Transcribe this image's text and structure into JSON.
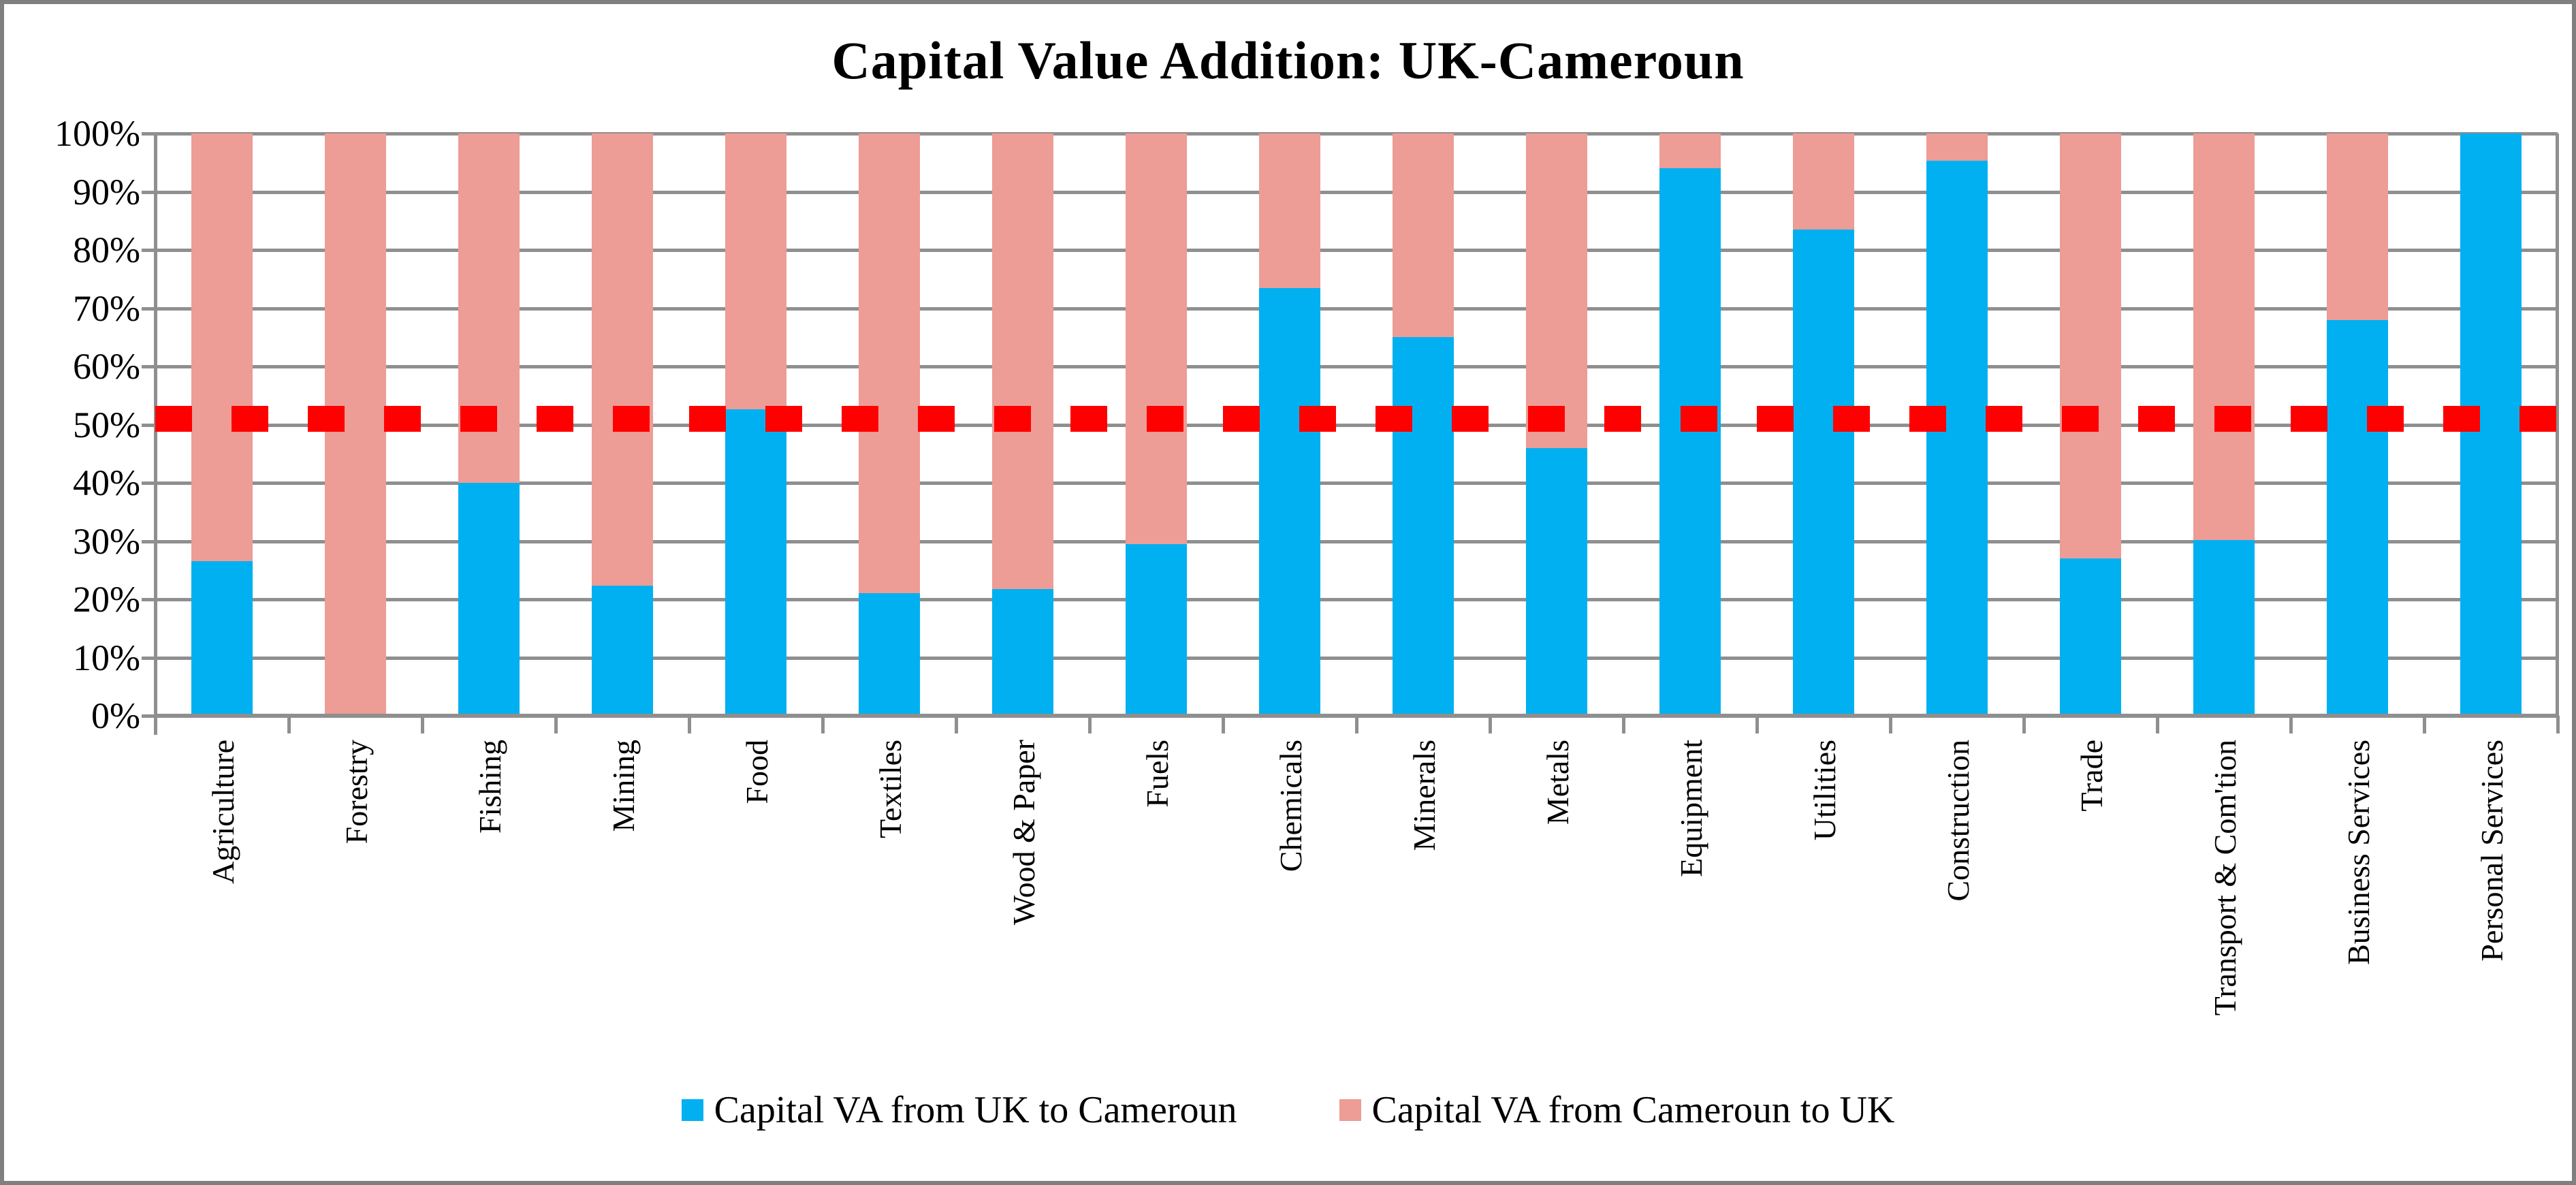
{
  "window": {
    "background": "#ffffff",
    "border_color": "#7f7f7f"
  },
  "chart_data": {
    "type": "bar",
    "stacked": true,
    "orientation": "vertical",
    "title": "Capital Value Addition: UK-Cameroun",
    "categories": [
      "Agriculture",
      "Forestry",
      "Fishing",
      "Mining",
      "Food",
      "Textiles",
      "Wood & Paper",
      "Fuels",
      "Chemicals",
      "Minerals",
      "Metals",
      "Equipment",
      "Utilities",
      "Construction",
      "Trade",
      "Transport & Com'tion",
      "Business Services",
      "Personal Services"
    ],
    "series": [
      {
        "name": "Capital VA from UK to Cameroun",
        "color": "#00b0f0",
        "values": [
          26.5,
          0,
          40,
          22.3,
          52.6,
          21,
          21.8,
          29.5,
          73.5,
          65,
          46,
          94,
          83.5,
          95.3,
          27,
          30.2,
          68,
          100
        ]
      },
      {
        "name": "Capital VA from Cameroun to UK",
        "color": "#ed9c96",
        "values": [
          73.5,
          100,
          60,
          77.7,
          47.4,
          79,
          78.2,
          70.5,
          26.5,
          35,
          54,
          6,
          16.5,
          4.7,
          73,
          69.8,
          32,
          0
        ]
      }
    ],
    "reference_line": {
      "value": 51,
      "color": "#ff0000",
      "style": "dashed"
    },
    "y_axis": {
      "min": 0,
      "max": 100,
      "step": 10,
      "format": "percent",
      "tick_labels": [
        "0%",
        "10%",
        "20%",
        "30%",
        "40%",
        "50%",
        "60%",
        "70%",
        "80%",
        "90%",
        "100%"
      ]
    },
    "x_axis": {
      "label_rotation": -90
    },
    "grid": true,
    "gridline_color": "#8f8f8f",
    "legend": {
      "position": "bottom"
    }
  }
}
